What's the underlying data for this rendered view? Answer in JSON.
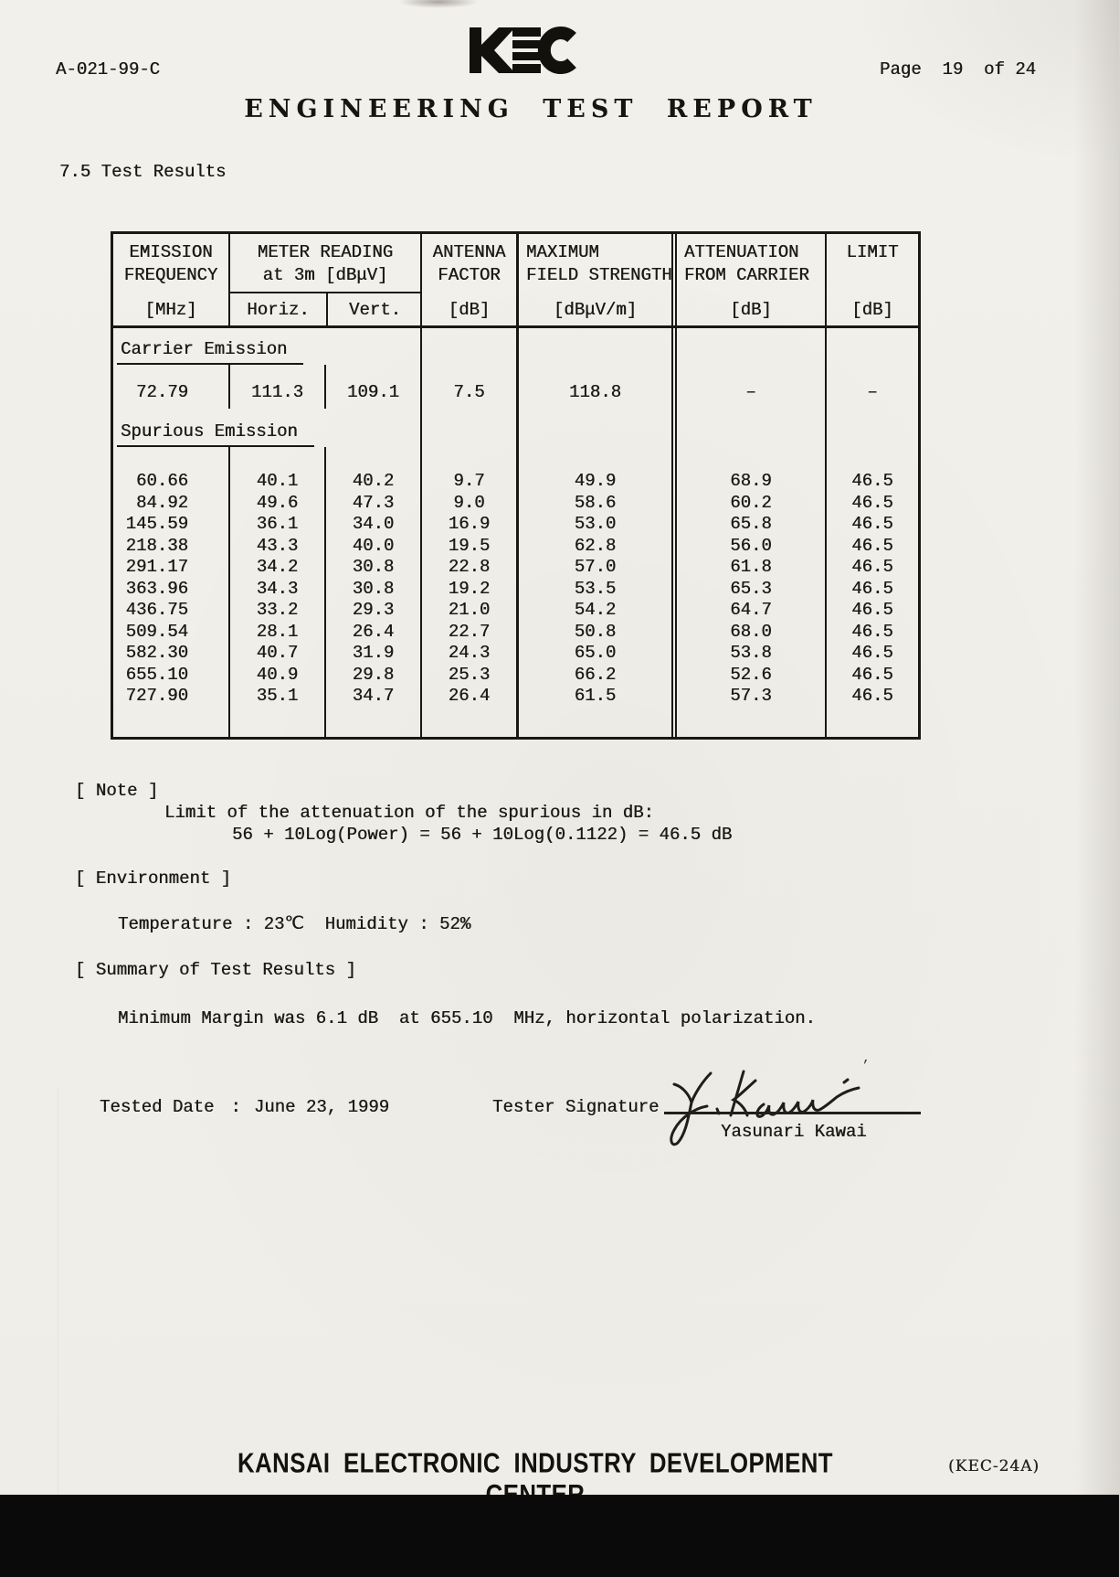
{
  "colors": {
    "paper": "#f1efea",
    "ink": "#1c1a17",
    "scan_band": "#0a0a0a"
  },
  "header": {
    "doc_number": "A-021-99-C",
    "logo_text": "KEC",
    "page_label": "Page  19  of 24",
    "title": "ENGINEERING TEST REPORT"
  },
  "section_heading": "7.5 Test Results",
  "table": {
    "header": {
      "freq": {
        "line1": "EMISSION",
        "line2": "FREQUENCY",
        "unit": "[MHz]"
      },
      "meter": {
        "line1": "METER READING",
        "line2": "at 3m [dBμV]",
        "sub1": "Horiz.",
        "sub2": "Vert."
      },
      "antenna": {
        "line1": "ANTENNA",
        "line2": "FACTOR",
        "unit": "[dB]"
      },
      "field": {
        "line1": "MAXIMUM",
        "line2": "FIELD STRENGTH",
        "unit": "[dBμV/m]"
      },
      "attenuation": {
        "line1": "ATTENUATION",
        "line2": "FROM CARRIER",
        "unit": "[dB]"
      },
      "limit": {
        "line1": "LIMIT",
        "line2": "",
        "unit": "[dB]"
      }
    },
    "sections": [
      {
        "label": "Carrier Emission",
        "rows": [
          [
            "72.79",
            "111.3",
            "109.1",
            "7.5",
            "118.8",
            "–",
            "–"
          ]
        ]
      },
      {
        "label": "Spurious Emission",
        "rows": [
          [
            "60.66",
            "40.1",
            "40.2",
            "9.7",
            "49.9",
            "68.9",
            "46.5"
          ],
          [
            "84.92",
            "49.6",
            "47.3",
            "9.0",
            "58.6",
            "60.2",
            "46.5"
          ],
          [
            "145.59",
            "36.1",
            "34.0",
            "16.9",
            "53.0",
            "65.8",
            "46.5"
          ],
          [
            "218.38",
            "43.3",
            "40.0",
            "19.5",
            "62.8",
            "56.0",
            "46.5"
          ],
          [
            "291.17",
            "34.2",
            "30.8",
            "22.8",
            "57.0",
            "61.8",
            "46.5"
          ],
          [
            "363.96",
            "34.3",
            "30.8",
            "19.2",
            "53.5",
            "65.3",
            "46.5"
          ],
          [
            "436.75",
            "33.2",
            "29.3",
            "21.0",
            "54.2",
            "64.7",
            "46.5"
          ],
          [
            "509.54",
            "28.1",
            "26.4",
            "22.7",
            "50.8",
            "68.0",
            "46.5"
          ],
          [
            "582.30",
            "40.7",
            "31.9",
            "24.3",
            "65.0",
            "53.8",
            "46.5"
          ],
          [
            "655.10",
            "40.9",
            "29.8",
            "25.3",
            "66.2",
            "52.6",
            "46.5"
          ],
          [
            "727.90",
            "35.1",
            "34.7",
            "26.4",
            "61.5",
            "57.3",
            "46.5"
          ]
        ]
      }
    ]
  },
  "note": {
    "heading": "[ Note ]",
    "line1": "Limit of the attenuation of the spurious in dB:",
    "line2": "56 + 10Log(Power) = 56 + 10Log(0.1122) = 46.5 dB"
  },
  "environment": {
    "heading": "[ Environment ]",
    "line": "Temperature : 23℃  Humidity : 52%"
  },
  "summary": {
    "heading": "[ Summary of Test Results ]",
    "line": "Minimum Margin was 6.1 dB  at 655.10  MHz, horizontal polarization."
  },
  "signoff": {
    "date_label": "Tested Date",
    "colon": ":",
    "date_value": "June 23, 1999",
    "signature_label": "Tester Signature",
    "signer_name": "Yasunari Kawai"
  },
  "footer": {
    "center": "KANSAI ELECTRONIC INDUSTRY DEVELOPMENT CENTER",
    "right": "(KEC-24A)"
  }
}
